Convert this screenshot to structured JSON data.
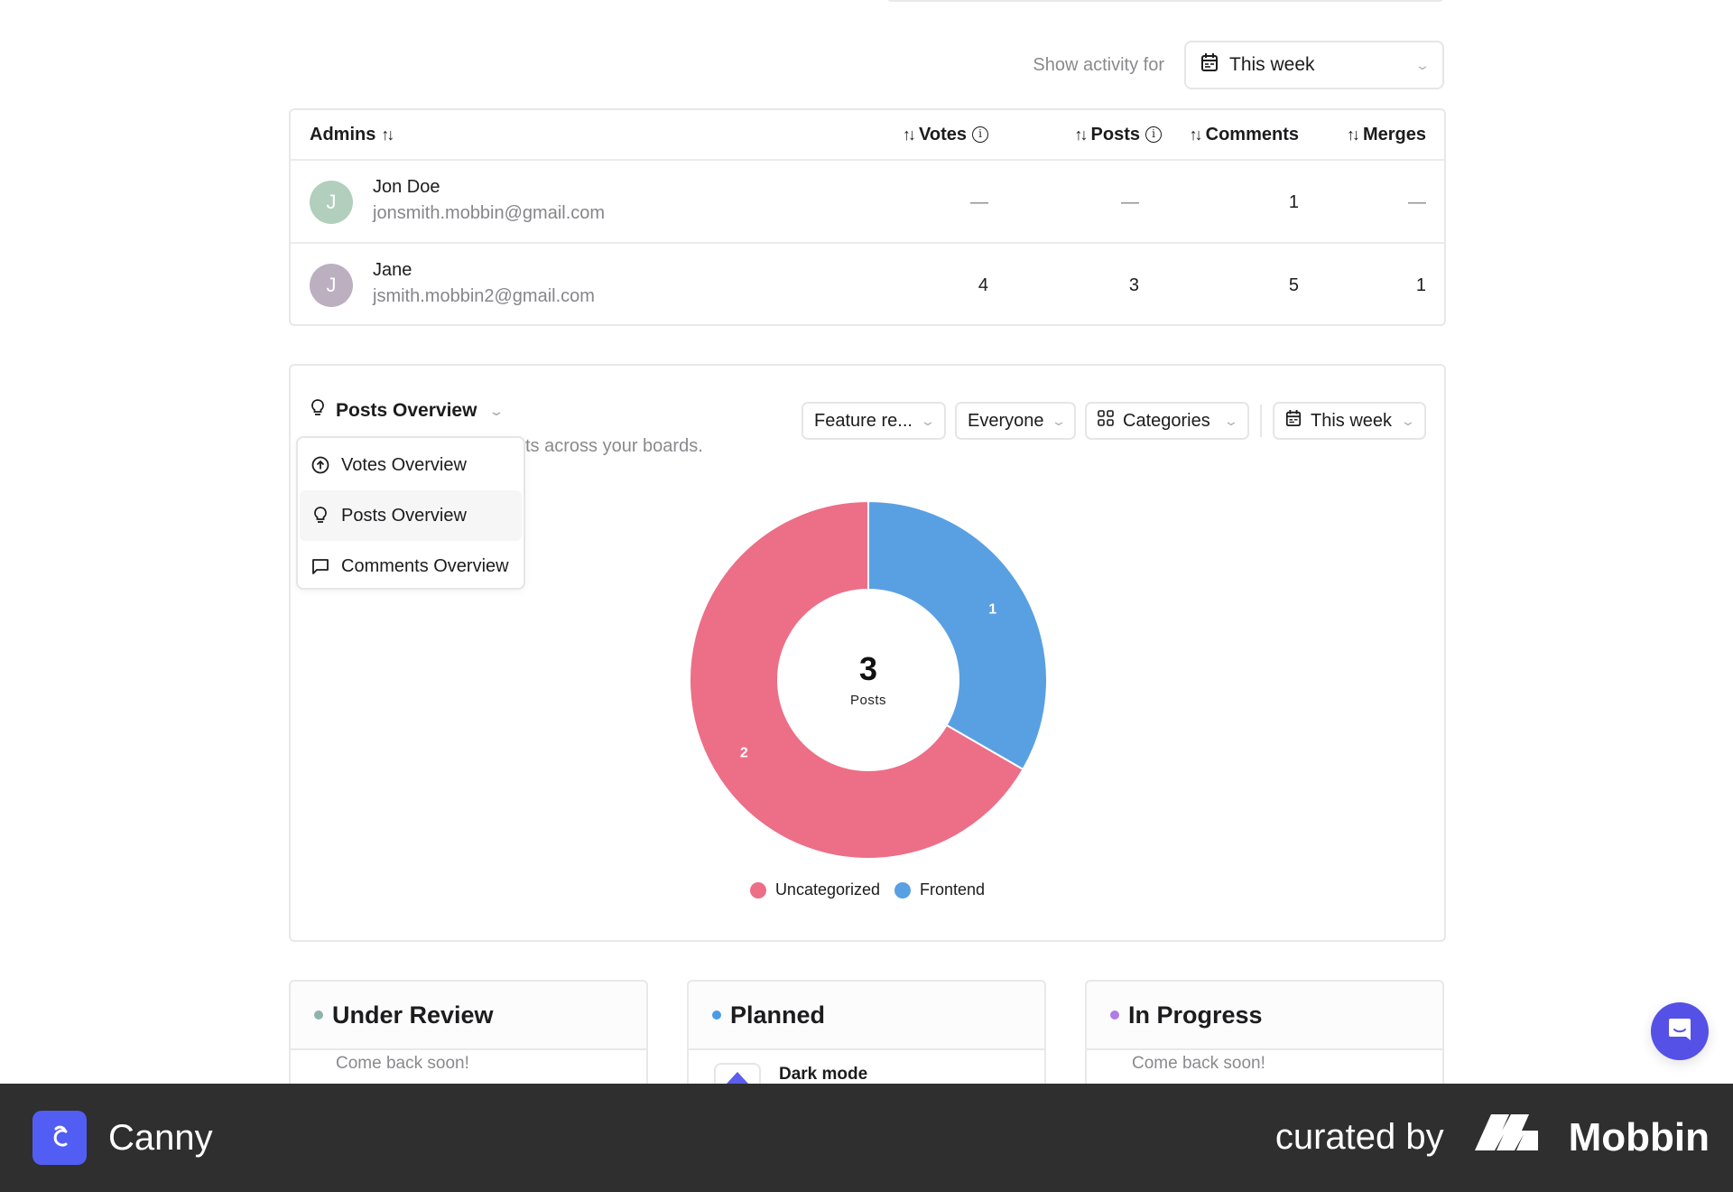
{
  "activity": {
    "label": "Show activity for",
    "range": "This week",
    "calendar_icon": "calendar-icon",
    "chevron_icon": "chevron-down-icon"
  },
  "admins_table": {
    "columns": [
      {
        "label": "Admins",
        "sort_icon": "sort-arrows-icon"
      },
      {
        "label": "Votes",
        "sort_icon": "sort-arrows-icon",
        "info_icon": "info-icon"
      },
      {
        "label": "Posts",
        "sort_icon": "sort-arrows-icon",
        "info_icon": "info-icon"
      },
      {
        "label": "Comments",
        "sort_icon": "sort-arrows-icon"
      },
      {
        "label": "Merges",
        "sort_icon": "sort-arrows-icon"
      }
    ],
    "rows": [
      {
        "initial": "J",
        "avatar_color": "#b2cfbd",
        "name": "Jon Doe",
        "email": "jonsmith.mobbin@gmail.com",
        "votes": "—",
        "posts": "—",
        "comments": "1",
        "merges": "—"
      },
      {
        "initial": "J",
        "avatar_color": "#bbafc0",
        "name": "Jane",
        "email": "jsmith.mobbin2@gmail.com",
        "votes": "4",
        "posts": "3",
        "comments": "5",
        "merges": "1"
      }
    ]
  },
  "overview": {
    "selected": "Posts Overview",
    "subtitle_visible": "sts across your boards.",
    "menu": [
      {
        "label": "Votes Overview",
        "icon": "arrow-up-circle-icon",
        "active": false
      },
      {
        "label": "Posts Overview",
        "icon": "lightbulb-icon",
        "active": true
      },
      {
        "label": "Comments Overview",
        "icon": "comment-icon",
        "active": false
      }
    ],
    "filters": {
      "board": "Feature re...",
      "audience": "Everyone",
      "group_by": "Categories",
      "range": "This week"
    }
  },
  "chart_data": {
    "type": "pie",
    "variant": "donut",
    "title": "Posts Overview",
    "center_value": "3",
    "center_label": "Posts",
    "categories": [
      "Uncategorized",
      "Frontend"
    ],
    "values": [
      2,
      1
    ],
    "colors": [
      "#ed6e87",
      "#58a0e2"
    ],
    "legend_position": "bottom"
  },
  "roadmap": [
    {
      "title": "Under Review",
      "dot_color": "#8fb3ab",
      "body": "Come back soon!"
    },
    {
      "title": "Planned",
      "dot_color": "#4a9be8",
      "post_title": "Dark mode"
    },
    {
      "title": "In Progress",
      "dot_color": "#b07ce6",
      "body": "Come back soon!"
    }
  ],
  "chat_widget": {
    "icon": "chat-smile-icon",
    "color": "#5551e6"
  },
  "footer": {
    "brand": "Canny",
    "curated_by": "curated by",
    "curator": "Mobbin"
  }
}
